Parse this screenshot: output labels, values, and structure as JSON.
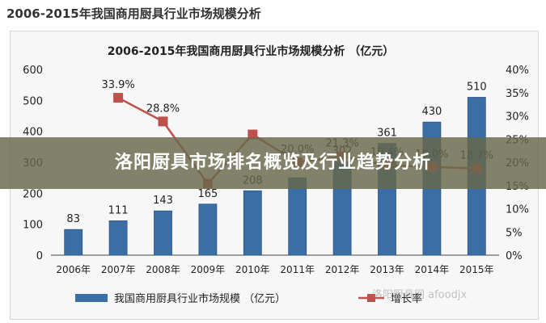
{
  "page": {
    "outer_title": "2006-2015年我国商用厨具行业市场规模分析",
    "banner": "洛阳厨具市场排名概览及行业趋势分析",
    "watermark": "洛阳厨具网 afoodjx"
  },
  "chart_data": {
    "type": "bar",
    "title": "2006-2015年我国商用厨具行业市场规模分析 （亿元）",
    "categories": [
      "2006年",
      "2007年",
      "2008年",
      "2009年",
      "2010年",
      "2011年",
      "2012年",
      "2013年",
      "2014年",
      "2015年"
    ],
    "series": [
      {
        "name": "我国商用厨具行业市场规模 （亿元）",
        "type": "bar",
        "axis": "left",
        "color": "#3b6ea5",
        "values": [
          83,
          111,
          143,
          165,
          208,
          250,
          302,
          361,
          430,
          510
        ],
        "labels": [
          "83",
          "111",
          "143",
          "165",
          "208",
          "",
          "302",
          "361",
          "430",
          "510"
        ]
      },
      {
        "name": "增长率",
        "type": "line",
        "axis": "right",
        "color": "#c0504d",
        "values": [
          null,
          33.9,
          28.8,
          15.4,
          26.0,
          20.0,
          21.3,
          19.4,
          19.0,
          18.7
        ],
        "labels": [
          "",
          "33.9%",
          "28.8%",
          "",
          "",
          "20.0%",
          "21.3%",
          "19.4%",
          "19.0%",
          "18.7%"
        ]
      }
    ],
    "y_left": {
      "ylim": [
        0,
        600
      ],
      "ticks": [
        "0",
        "100",
        "200",
        "300",
        "400",
        "500",
        "600"
      ]
    },
    "y_right": {
      "ylim": [
        0,
        40
      ],
      "ticks": [
        "0%",
        "5%",
        "10%",
        "15%",
        "20%",
        "25%",
        "30%",
        "35%",
        "40%"
      ]
    },
    "legend": {
      "position": "bottom",
      "entries": [
        "我国商用厨具行业市场规模 （亿元）",
        "增长率"
      ]
    },
    "grid": false
  }
}
